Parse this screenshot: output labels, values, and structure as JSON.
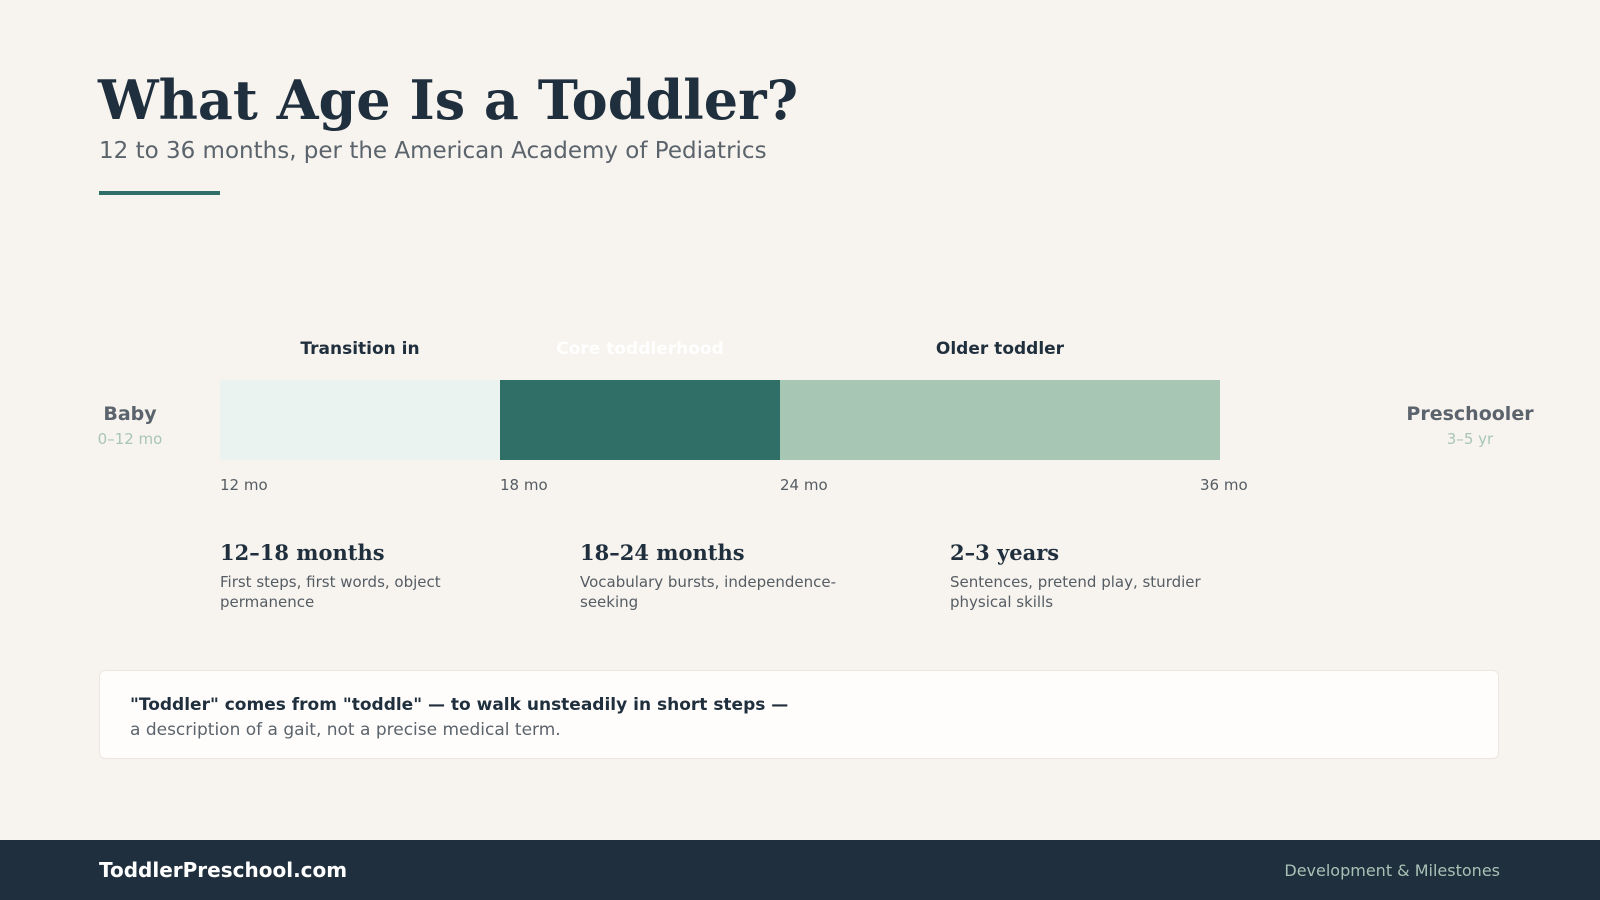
{
  "header": {
    "title": "What Age Is a Toddler?",
    "subtitle": "12 to 36 months, per the American Academy of Pediatrics"
  },
  "timeline": {
    "start_month": 12,
    "end_month": 36,
    "segments": [
      {
        "label": "Transition in",
        "from_month": 12,
        "to_month": 18,
        "color": "#ebf3f1",
        "label_color": "#1f2f3d"
      },
      {
        "label": "Core toddlerhood",
        "from_month": 18,
        "to_month": 24,
        "color": "#2f6f67",
        "label_color": "#ffffff"
      },
      {
        "label": "Older toddler",
        "from_month": 24,
        "to_month": 36,
        "color": "#a8c6b4",
        "label_color": "#1f2f3d"
      }
    ],
    "ticks": [
      "12 mo",
      "18 mo",
      "24 mo",
      "36 mo"
    ],
    "before": {
      "title": "Baby",
      "range": "0–12 mo"
    },
    "after": {
      "title": "Preschooler",
      "range": "3–5 yr"
    }
  },
  "stages": [
    {
      "heading": "12–18 months",
      "description": "First steps, first words, object permanence"
    },
    {
      "heading": "18–24 months",
      "description": "Vocabulary bursts, independence-seeking"
    },
    {
      "heading": "2–3 years",
      "description": "Sentences, pretend play, sturdier physical skills"
    }
  ],
  "note": {
    "strong": "\"Toddler\" comes from \"toddle\" — to walk unsteadily in short steps —",
    "text": "a description of a gait, not a precise medical term."
  },
  "footer": {
    "brand": "ToddlerPreschool.com",
    "section": "Development & Milestones"
  }
}
